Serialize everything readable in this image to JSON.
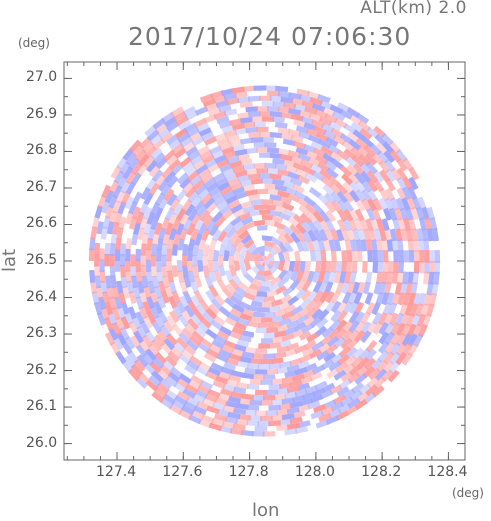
{
  "header": {
    "altitude_label": "ALT(km) 2.0",
    "datetime_label": "2017/10/24 07:06:30"
  },
  "chart_data": {
    "type": "heatmap",
    "title": "2017/10/24 07:06:30",
    "subtitle": "ALT(km) 2.0",
    "xlabel": "lon",
    "ylabel": "lat",
    "x_unit": "(deg)",
    "y_unit": "(deg)",
    "xlim": [
      127.24,
      128.45
    ],
    "ylim": [
      25.955,
      27.045
    ],
    "x_ticks": [
      127.4,
      127.6,
      127.8,
      128.0,
      128.2,
      128.4
    ],
    "x_tick_labels": [
      "127.4",
      "127.6",
      "127.8",
      "128.0",
      "128.2",
      "128.4"
    ],
    "y_ticks": [
      26.0,
      26.1,
      26.2,
      26.3,
      26.4,
      26.5,
      26.6,
      26.7,
      26.8,
      26.9,
      27.0
    ],
    "y_tick_labels": [
      "26.0",
      "26.1",
      "26.2",
      "26.3",
      "26.4",
      "26.5",
      "26.6",
      "26.7",
      "26.8",
      "26.9",
      "27.0"
    ],
    "radar_center": [
      127.845,
      26.5
    ],
    "radar_radius_deg": 0.53,
    "colormap": {
      "positive": "#ff9a9a",
      "negative": "#9fa6ff",
      "zero": "#ffffff"
    },
    "grid": false
  }
}
